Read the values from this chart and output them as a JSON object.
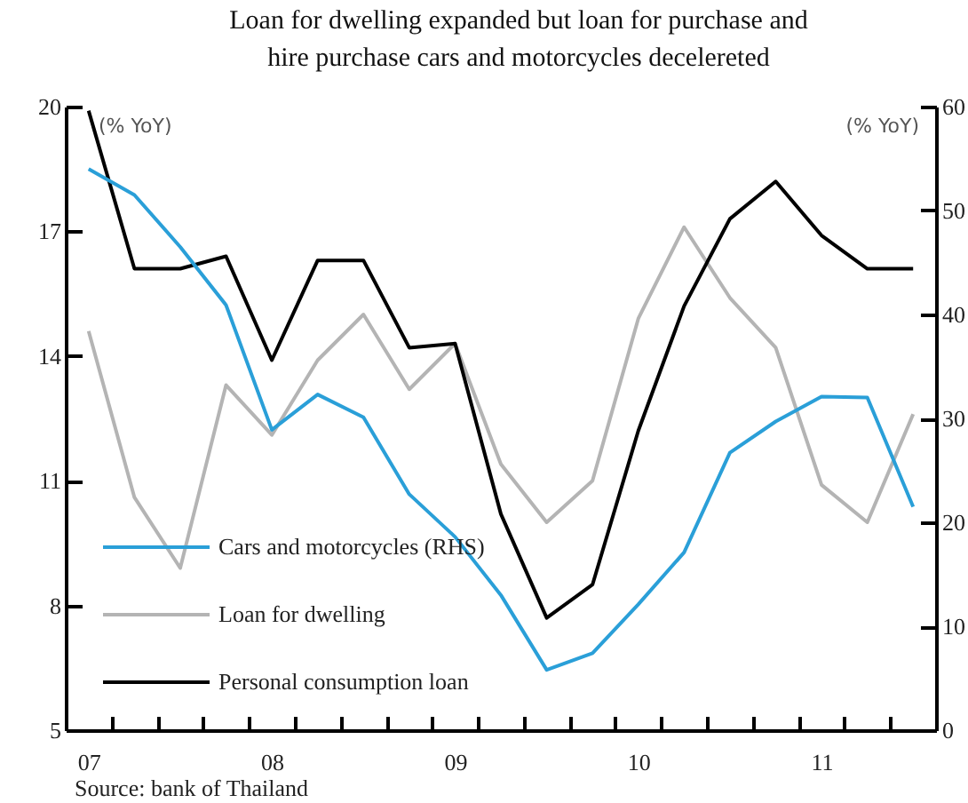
{
  "chart_data": {
    "type": "line",
    "title": "Loan for dwelling expanded but loan for purchase and\nhire purchase cars and motorcycles decelereted",
    "ylabel": "(% YoY)",
    "y2label": "(% YoY)",
    "annotations": [
      "Source: bank of Thailand"
    ],
    "x": [
      2007,
      2007.25,
      2007.5,
      2007.75,
      2008,
      2008.25,
      2008.5,
      2008.75,
      2009,
      2009.25,
      2009.5,
      2009.75,
      2010,
      2010.25,
      2010.5,
      2010.75,
      2011,
      2011.25,
      2011.5
    ],
    "xlim": [
      2006.875,
      2011.625
    ],
    "xticks": [
      {
        "value": 2007,
        "label": "07"
      },
      {
        "value": 2008,
        "label": "08"
      },
      {
        "value": 2009,
        "label": "09"
      },
      {
        "value": 2010,
        "label": "10"
      },
      {
        "value": 2011,
        "label": "11"
      },
      {
        "value": 2007.125,
        "label": null
      },
      {
        "value": 2007.375,
        "label": null
      },
      {
        "value": 2007.625,
        "label": null
      },
      {
        "value": 2007.875,
        "label": null
      },
      {
        "value": 2008.125,
        "label": null
      },
      {
        "value": 2008.375,
        "label": null
      },
      {
        "value": 2008.625,
        "label": null
      },
      {
        "value": 2008.875,
        "label": null
      },
      {
        "value": 2009.125,
        "label": null
      },
      {
        "value": 2009.375,
        "label": null
      },
      {
        "value": 2009.625,
        "label": null
      },
      {
        "value": 2009.875,
        "label": null
      },
      {
        "value": 2010.125,
        "label": null
      },
      {
        "value": 2010.375,
        "label": null
      },
      {
        "value": 2010.625,
        "label": null
      },
      {
        "value": 2010.875,
        "label": null
      },
      {
        "value": 2011.125,
        "label": null
      },
      {
        "value": 2011.375,
        "label": null
      }
    ],
    "ylim": [
      5,
      20
    ],
    "yticks": [
      5,
      8,
      11,
      14,
      17,
      20
    ],
    "y2lim": [
      0,
      60
    ],
    "y2ticks": [
      0,
      10,
      20,
      30,
      40,
      50,
      60
    ],
    "legend": "bottom left",
    "series": [
      {
        "name": "Cars and motorcycles (RHS)",
        "color": "#2a9fd8",
        "axis": "y2",
        "values": [
          54.0,
          51.5,
          46.5,
          40.9,
          28.9,
          32.3,
          30.1,
          22.7,
          18.6,
          13.0,
          5.8,
          7.4,
          12.1,
          17.1,
          26.7,
          29.7,
          32.1,
          32.0,
          21.5
        ]
      },
      {
        "name": "Loan for dwelling",
        "color": "#b4b4b4",
        "values": [
          14.6,
          10.6,
          8.9,
          13.3,
          12.1,
          13.9,
          15.0,
          13.2,
          14.3,
          11.4,
          10.0,
          11.0,
          14.9,
          17.1,
          15.4,
          14.2,
          10.9,
          10.0,
          12.6
        ]
      },
      {
        "name": "Personal consumption loan",
        "color": "#000000",
        "values": [
          19.9,
          16.1,
          16.1,
          16.4,
          13.9,
          16.3,
          16.3,
          14.2,
          14.3,
          10.2,
          7.7,
          8.5,
          12.2,
          15.2,
          17.3,
          18.2,
          16.9,
          16.1,
          16.1
        ]
      }
    ]
  }
}
